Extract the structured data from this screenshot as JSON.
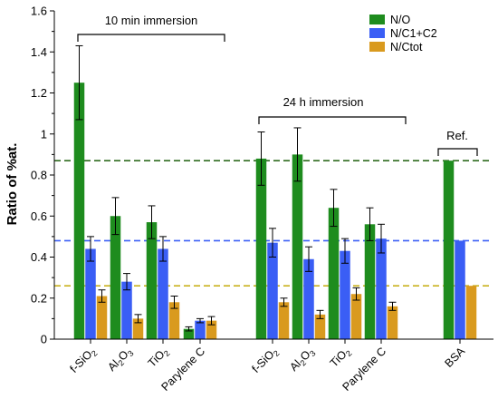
{
  "chart_data": {
    "type": "bar",
    "ylabel": "Ratio of %at.",
    "ylim": [
      0,
      1.6
    ],
    "yticks": [
      "0",
      "0.2",
      "0.4",
      "0.6",
      "0.8",
      "1",
      "1.2",
      "1.4",
      "1.6"
    ],
    "categories": [
      {
        "label": "f-SiO",
        "sub": "2"
      },
      {
        "label": "Al",
        "sub": "2",
        "label2": "O",
        "sub2": "3"
      },
      {
        "label": "TiO",
        "sub": "2"
      },
      {
        "label": "Parylene C"
      },
      {
        "label": "f-SiO",
        "sub": "2"
      },
      {
        "label": "Al",
        "sub": "2",
        "label2": "O",
        "sub2": "3"
      },
      {
        "label": "TiO",
        "sub": "2"
      },
      {
        "label": "Parylene C"
      },
      {
        "label": "BSA"
      }
    ],
    "series": [
      {
        "name": "N/O",
        "color": "#1e8c1e",
        "values": [
          1.25,
          0.6,
          0.57,
          0.05,
          0.88,
          0.9,
          0.64,
          0.56,
          0.87
        ],
        "errors": [
          0.18,
          0.09,
          0.08,
          0.01,
          0.13,
          0.13,
          0.09,
          0.08,
          null
        ]
      },
      {
        "name": "N/C1+C2",
        "color": "#3a5ef5",
        "values": [
          0.44,
          0.28,
          0.44,
          0.09,
          0.47,
          0.39,
          0.43,
          0.49,
          0.48
        ],
        "errors": [
          0.06,
          0.04,
          0.06,
          0.01,
          0.07,
          0.06,
          0.06,
          0.07,
          null
        ]
      },
      {
        "name": "N/Ctot",
        "color": "#d99a1e",
        "values": [
          0.21,
          0.1,
          0.18,
          0.09,
          0.18,
          0.12,
          0.22,
          0.16,
          0.26
        ],
        "errors": [
          0.03,
          0.02,
          0.03,
          0.02,
          0.02,
          0.02,
          0.03,
          0.02,
          null
        ]
      }
    ],
    "reference_lines": [
      {
        "value": 0.87,
        "color": "#2e6b1e"
      },
      {
        "value": 0.48,
        "color": "#3a5ef5"
      },
      {
        "value": 0.26,
        "color": "#c9b21e"
      }
    ],
    "groups": [
      {
        "label": "10 min immersion",
        "categories": [
          0,
          3
        ]
      },
      {
        "label": "24 h immersion",
        "categories": [
          4,
          7
        ]
      },
      {
        "label": "Ref.",
        "categories": [
          8,
          8
        ]
      }
    ],
    "legend_position": "top-right",
    "grid": false
  }
}
